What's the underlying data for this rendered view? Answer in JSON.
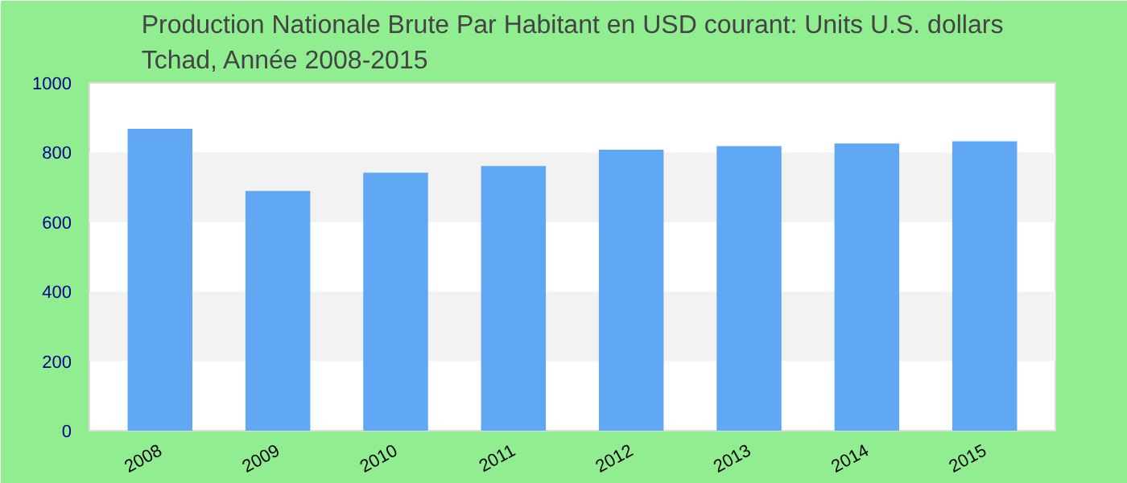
{
  "chart_data": {
    "type": "bar",
    "title": "Production Nationale Brute Par Habitant en USD courant: Units U.S. dollars\nTchad, Année 2008-2015",
    "categories": [
      "2008",
      "2009",
      "2010",
      "2011",
      "2012",
      "2013",
      "2014",
      "2015"
    ],
    "values": [
      868,
      689,
      742,
      761,
      808,
      818,
      826,
      832
    ],
    "color": "#60a8f4",
    "ylim": [
      0,
      1000
    ],
    "yticks": [
      0,
      200,
      400,
      600,
      800,
      1000
    ],
    "bands": [
      {
        "axis": "y",
        "from": 200,
        "to": 400,
        "color": "#f2f2f2"
      },
      {
        "axis": "y",
        "from": 600,
        "to": 800,
        "color": "#f2f2f2"
      }
    ]
  }
}
